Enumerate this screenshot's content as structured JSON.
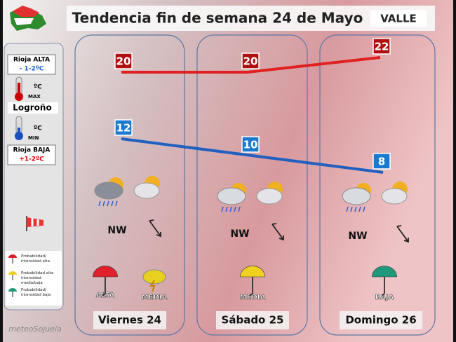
{
  "header": {
    "title": "Tendencia fin de semana 24 de Mayo",
    "region": "VALLE"
  },
  "sidebar": {
    "alta_label": "Rioja ALTA",
    "alta_value": "- 1-2ºC",
    "unit": "ºC",
    "max_label": "MAX",
    "city": "Logroño",
    "min_label": "MIN",
    "baja_label": "Rioja BAJA",
    "baja_value": "+1-2ºC",
    "legend": [
      "Probabilidad/ intensidad alta",
      "Probabilidad alta intensidad media/baja",
      "Probabilidad/ intensidad baja"
    ]
  },
  "watermark": "meteoSojuela",
  "days": [
    {
      "name": "Viernes 24",
      "max": 20,
      "min": 12,
      "wind": "NW",
      "rain": [
        "ALTA",
        "MEDIA"
      ]
    },
    {
      "name": "Sábado 25",
      "max": 20,
      "min": 10,
      "wind": "NW",
      "rain": [
        "MEDIA"
      ]
    },
    {
      "name": "Domingo 26",
      "max": 22,
      "min": 8,
      "wind": "NW",
      "rain": [
        "BAJA"
      ]
    }
  ]
}
